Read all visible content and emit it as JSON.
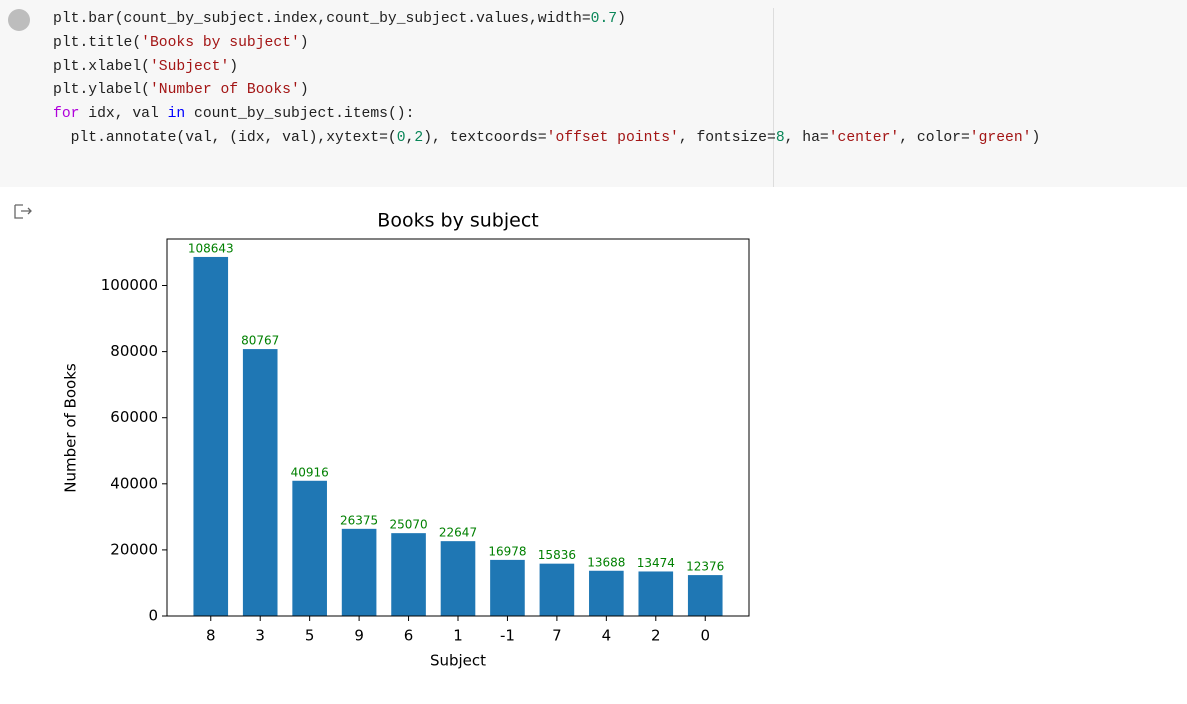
{
  "code_cell": {
    "lines": [
      [
        {
          "text": "plt.bar(count_by_subject.index,count_by_subject.values,width=",
          "color": "#212121"
        },
        {
          "text": "0.7",
          "color": "#098658"
        },
        {
          "text": ")",
          "color": "#212121"
        }
      ],
      [
        {
          "text": "plt.title(",
          "color": "#212121"
        },
        {
          "text": "'Books by subject'",
          "color": "#a31515"
        },
        {
          "text": ")",
          "color": "#212121"
        }
      ],
      [
        {
          "text": "plt.xlabel(",
          "color": "#212121"
        },
        {
          "text": "'Subject'",
          "color": "#a31515"
        },
        {
          "text": ")",
          "color": "#212121"
        }
      ],
      [
        {
          "text": "plt.ylabel(",
          "color": "#212121"
        },
        {
          "text": "'Number of Books'",
          "color": "#a31515"
        },
        {
          "text": ")",
          "color": "#212121"
        }
      ],
      [
        {
          "text": "for",
          "color": "#af00db"
        },
        {
          "text": " idx, val ",
          "color": "#212121"
        },
        {
          "text": "in",
          "color": "#0000ff"
        },
        {
          "text": " count_by_subject.items():",
          "color": "#212121"
        }
      ],
      [
        {
          "text": "  plt.annotate(val, (idx, val),xytext=(",
          "color": "#212121"
        },
        {
          "text": "0",
          "color": "#098658"
        },
        {
          "text": ",",
          "color": "#212121"
        },
        {
          "text": "2",
          "color": "#098658"
        },
        {
          "text": "), textcoords=",
          "color": "#212121"
        },
        {
          "text": "'offset points'",
          "color": "#a31515"
        },
        {
          "text": ", fontsize=",
          "color": "#212121"
        },
        {
          "text": "8",
          "color": "#098658"
        },
        {
          "text": ", ha=",
          "color": "#212121"
        },
        {
          "text": "'center'",
          "color": "#a31515"
        },
        {
          "text": ", color=",
          "color": "#212121"
        },
        {
          "text": "'green'",
          "color": "#a31515"
        },
        {
          "text": ")",
          "color": "#212121"
        }
      ]
    ]
  },
  "chart_data": {
    "type": "bar",
    "title": "Books by subject",
    "x_label": "Subject",
    "y_label": "Number of Books",
    "categories": [
      "8",
      "3",
      "5",
      "9",
      "6",
      "1",
      "-1",
      "7",
      "4",
      "2",
      "0"
    ],
    "values": [
      108643,
      80767,
      40916,
      26375,
      25070,
      22647,
      16978,
      15836,
      13688,
      13474,
      12376
    ],
    "color": "#1f77b4",
    "label_color": "#008000",
    "ylim": [
      0,
      114075
    ],
    "yticks": [
      0,
      20000,
      40000,
      60000,
      80000,
      100000
    ],
    "grid": false
  }
}
